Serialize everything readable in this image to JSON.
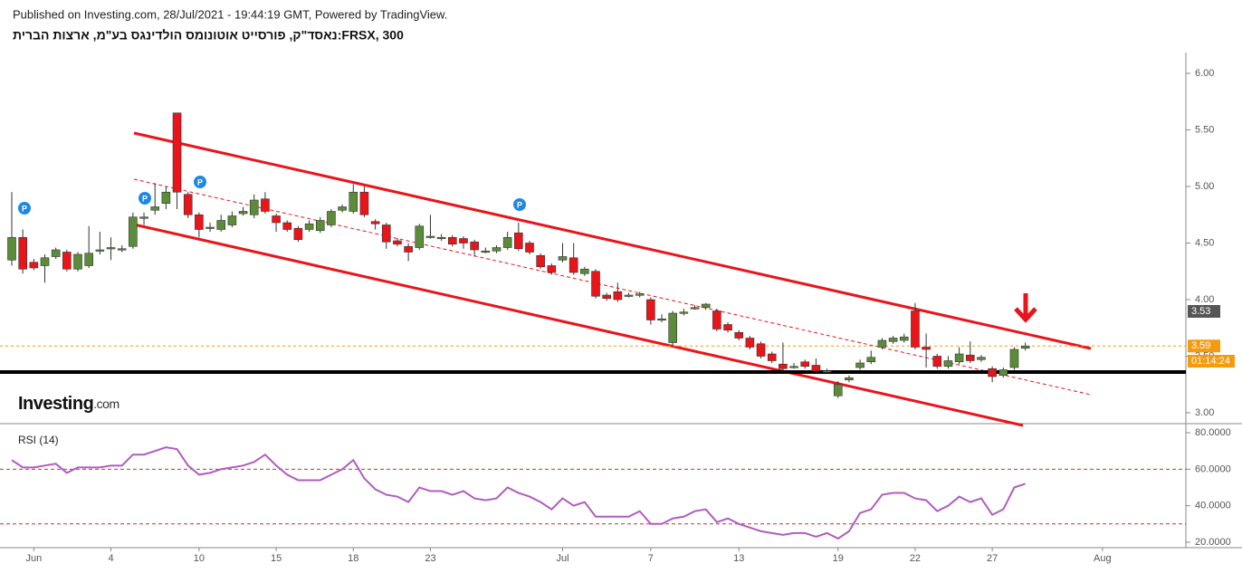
{
  "header": {
    "published": "Published on Investing.com, 28/Jul/2021 - 19:44:19 GMT, Powered by TradingView.",
    "title": "נאסד\"ק, פורסייט אוטונומס הולדינגס בע\"מ, ארצות הברית:FRSX, 300",
    "logo": "Investing",
    "logo_suffix": ".com"
  },
  "chart_data": {
    "type": "candlestick",
    "categories": [
      null,
      null,
      "Jun",
      null,
      null,
      null,
      null,
      null,
      null,
      "4",
      null,
      null,
      null,
      null,
      null,
      null,
      null,
      "10",
      null,
      null,
      null,
      null,
      null,
      null,
      "15",
      null,
      null,
      null,
      null,
      null,
      null,
      "18",
      null,
      null,
      null,
      null,
      null,
      null,
      "23",
      null,
      null,
      null,
      null,
      null,
      null,
      null,
      null,
      null,
      null,
      null,
      "Jul",
      null,
      null,
      null,
      null,
      null,
      null,
      null,
      "7",
      null,
      null,
      null,
      null,
      null,
      null,
      null,
      "13",
      null,
      null,
      null,
      null,
      null,
      null,
      null,
      null,
      "19",
      null,
      null,
      null,
      null,
      null,
      null,
      "22",
      null,
      null,
      null,
      null,
      null,
      null,
      "27",
      null,
      null,
      null,
      null,
      null,
      null,
      null,
      null,
      null,
      "Aug"
    ],
    "open": [
      4.35,
      4.55,
      4.33,
      4.3,
      4.38,
      4.42,
      4.27,
      4.3,
      4.44,
      4.46,
      4.45,
      4.47,
      4.73,
      4.79,
      4.85,
      5.65,
      4.93,
      4.75,
      4.64,
      4.62,
      4.66,
      4.76,
      4.75,
      4.89,
      4.74,
      4.68,
      4.63,
      4.62,
      4.61,
      4.66,
      4.79,
      4.78,
      4.95,
      4.69,
      4.66,
      4.52,
      4.47,
      4.46,
      4.56,
      4.55,
      4.55,
      4.54,
      4.51,
      4.43,
      4.43,
      4.46,
      4.59,
      4.5,
      4.39,
      4.3,
      4.35,
      4.37,
      4.23,
      4.25,
      4.04,
      4.07,
      4.04,
      4.04,
      4.0,
      3.83,
      3.62,
      3.88,
      3.93,
      3.93,
      3.9,
      3.78,
      3.71,
      3.66,
      3.61,
      3.52,
      3.43,
      3.41,
      3.45,
      3.42,
      3.37,
      3.15,
      3.29,
      3.4,
      3.45,
      3.58,
      3.63,
      3.64,
      3.9,
      3.58,
      3.5,
      3.41,
      3.45,
      3.51,
      3.47,
      3.39,
      3.33,
      3.4,
      3.57,
      null,
      null,
      null,
      null,
      null,
      null,
      null
    ],
    "high": [
      4.95,
      4.62,
      4.36,
      4.4,
      4.46,
      4.44,
      4.42,
      4.65,
      4.6,
      4.55,
      4.48,
      4.77,
      4.77,
      5.03,
      5.0,
      5.65,
      4.95,
      4.77,
      4.68,
      4.75,
      4.78,
      4.82,
      4.93,
      4.95,
      4.76,
      4.7,
      4.65,
      4.7,
      4.73,
      4.8,
      4.84,
      5.02,
      5.0,
      4.71,
      4.68,
      4.54,
      4.5,
      4.67,
      4.75,
      4.58,
      4.57,
      4.56,
      4.53,
      4.46,
      4.48,
      4.6,
      4.68,
      4.52,
      4.41,
      4.32,
      4.5,
      4.5,
      4.29,
      4.27,
      4.06,
      4.15,
      4.06,
      4.07,
      4.02,
      3.87,
      3.9,
      3.92,
      3.95,
      3.97,
      3.92,
      3.8,
      3.73,
      3.68,
      3.63,
      3.54,
      3.62,
      3.44,
      3.47,
      3.48,
      3.39,
      3.28,
      3.33,
      3.47,
      3.55,
      3.66,
      3.68,
      3.7,
      3.97,
      3.7,
      3.52,
      3.5,
      3.58,
      3.63,
      3.51,
      3.41,
      3.4,
      3.58,
      3.62,
      null,
      null,
      null,
      null,
      null,
      null,
      null
    ],
    "low": [
      4.3,
      4.23,
      4.26,
      4.15,
      4.36,
      4.25,
      4.25,
      4.28,
      4.4,
      4.35,
      4.42,
      4.45,
      4.66,
      4.75,
      4.8,
      4.8,
      4.72,
      4.55,
      4.6,
      4.6,
      4.64,
      4.74,
      4.72,
      4.76,
      4.6,
      4.6,
      4.51,
      4.6,
      4.59,
      4.64,
      4.77,
      4.76,
      4.73,
      4.62,
      4.45,
      4.47,
      4.34,
      4.44,
      4.54,
      4.52,
      4.47,
      4.45,
      4.38,
      4.41,
      4.41,
      4.44,
      4.43,
      4.4,
      4.27,
      4.22,
      4.33,
      4.22,
      4.21,
      4.01,
      3.99,
      3.98,
      4.02,
      4.02,
      3.78,
      3.8,
      3.6,
      3.86,
      3.91,
      3.91,
      3.72,
      3.71,
      3.64,
      3.56,
      3.48,
      3.44,
      3.37,
      3.39,
      3.39,
      3.35,
      3.35,
      3.13,
      3.27,
      3.38,
      3.43,
      3.56,
      3.61,
      3.62,
      3.56,
      3.4,
      3.39,
      3.39,
      3.43,
      3.44,
      3.45,
      3.27,
      3.31,
      3.38,
      3.55,
      null,
      null,
      null,
      null,
      null,
      null,
      null
    ],
    "close": [
      4.55,
      4.27,
      4.28,
      4.37,
      4.44,
      4.27,
      4.4,
      4.41,
      4.44,
      4.46,
      4.45,
      4.73,
      4.73,
      4.82,
      4.95,
      4.95,
      4.75,
      4.62,
      4.64,
      4.7,
      4.74,
      4.78,
      4.88,
      4.78,
      4.68,
      4.62,
      4.53,
      4.67,
      4.7,
      4.78,
      4.82,
      4.95,
      4.75,
      4.67,
      4.51,
      4.49,
      4.42,
      4.65,
      4.56,
      4.55,
      4.49,
      4.5,
      4.44,
      4.43,
      4.46,
      4.55,
      4.45,
      4.42,
      4.29,
      4.24,
      4.38,
      4.24,
      4.27,
      4.03,
      4.01,
      4.0,
      4.04,
      4.05,
      3.82,
      3.83,
      3.88,
      3.89,
      3.93,
      3.96,
      3.74,
      3.73,
      3.66,
      3.58,
      3.5,
      3.46,
      3.39,
      3.41,
      3.41,
      3.37,
      3.37,
      3.25,
      3.31,
      3.44,
      3.49,
      3.64,
      3.66,
      3.67,
      3.58,
      3.56,
      3.41,
      3.46,
      3.52,
      3.46,
      3.49,
      3.32,
      3.38,
      3.56,
      3.59,
      null,
      null,
      null,
      null,
      null,
      null,
      null
    ],
    "up_color": "#5b8c3a",
    "down_color": "#e8151b",
    "ylim": [
      2.904,
      6.168
    ],
    "yticks": [
      {
        "value": 3,
        "label": "3.00"
      },
      {
        "value": 3.5,
        "label": "3.50"
      },
      {
        "value": 4,
        "label": "4.00"
      },
      {
        "value": 4.5,
        "label": "4.50"
      },
      {
        "value": 5,
        "label": "5.00"
      },
      {
        "value": 5.5,
        "label": "5.50"
      },
      {
        "value": 6,
        "label": "6.00"
      }
    ],
    "last_price": 3.59,
    "support": 3.36,
    "prev_tag": 3.53,
    "countdown": "01:14:24",
    "markers": [
      "P",
      "P",
      "P",
      "P"
    ],
    "rsi": {
      "type": "line",
      "name": "RSI (14)",
      "color": "#b05cc0",
      "values": [
        65,
        61,
        61,
        62,
        63,
        58,
        61,
        61,
        61,
        62,
        62,
        68,
        68,
        70,
        72,
        71,
        62,
        57,
        58,
        60,
        61,
        62,
        64,
        68,
        62,
        57,
        54,
        54,
        54,
        57,
        60,
        65,
        55,
        49,
        46,
        45,
        42,
        50,
        48,
        48,
        46,
        48,
        44,
        43,
        44,
        50,
        47,
        45,
        42,
        38,
        44,
        40,
        42,
        34,
        34,
        34,
        34,
        37,
        30,
        30,
        33,
        34,
        37,
        38,
        31,
        33,
        30,
        28,
        26,
        25,
        24,
        25,
        25,
        23,
        25,
        22,
        26,
        36,
        38,
        46,
        47,
        47,
        44,
        43,
        37,
        40,
        45,
        42,
        44,
        35,
        38,
        50,
        52,
        null,
        null,
        null,
        null,
        null,
        null,
        null
      ],
      "ylim": [
        17,
        83
      ],
      "yticks": [
        {
          "value": 20,
          "label": "20.0000"
        },
        {
          "value": 40,
          "label": "40.0000"
        },
        {
          "value": 60,
          "label": "60.0000"
        },
        {
          "value": 80,
          "label": "80.0000"
        }
      ],
      "bands": [
        30,
        60
      ]
    }
  }
}
